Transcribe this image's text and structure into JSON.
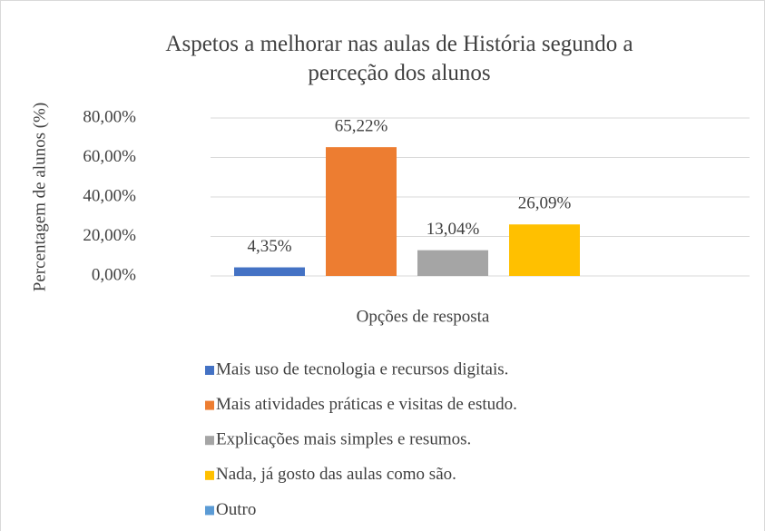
{
  "chart_data": {
    "type": "bar",
    "title": "Aspetos a melhorar nas aulas de História segundo a perceção dos alunos",
    "ylabel": "Percentagem de alunos (%)",
    "xlabel": "Opções de resposta",
    "categories": [
      null
    ],
    "series": [
      {
        "name": "Mais uso de tecnologia e recursos digitais.",
        "color": "#4472c4",
        "values": [
          4.35
        ],
        "value_labels": [
          "4,35%"
        ]
      },
      {
        "name": "Mais atividades práticas e visitas de estudo.",
        "color": "#ed7d31",
        "values": [
          65.22
        ],
        "value_labels": [
          "65,22%"
        ]
      },
      {
        "name": "Explicações mais simples e resumos.",
        "color": "#a5a5a5",
        "values": [
          13.04
        ],
        "value_labels": [
          "13,04%"
        ]
      },
      {
        "name": "Nada, já gosto das aulas como são.",
        "color": "#ffc000",
        "values": [
          26.09
        ],
        "value_labels": [
          "26,09%"
        ]
      },
      {
        "name": "Outro",
        "color": "#5b9bd5",
        "values": [
          null
        ],
        "value_labels": [
          null
        ]
      }
    ],
    "ylim": [
      0,
      80
    ],
    "yticks": [
      {
        "value": 0,
        "label": "0,00%"
      },
      {
        "value": 20,
        "label": "20,00%"
      },
      {
        "value": 40,
        "label": "40,00%"
      },
      {
        "value": 60,
        "label": "60,00%"
      },
      {
        "value": 80,
        "label": "80,00%"
      }
    ],
    "grid": true,
    "legend": "bottom"
  }
}
